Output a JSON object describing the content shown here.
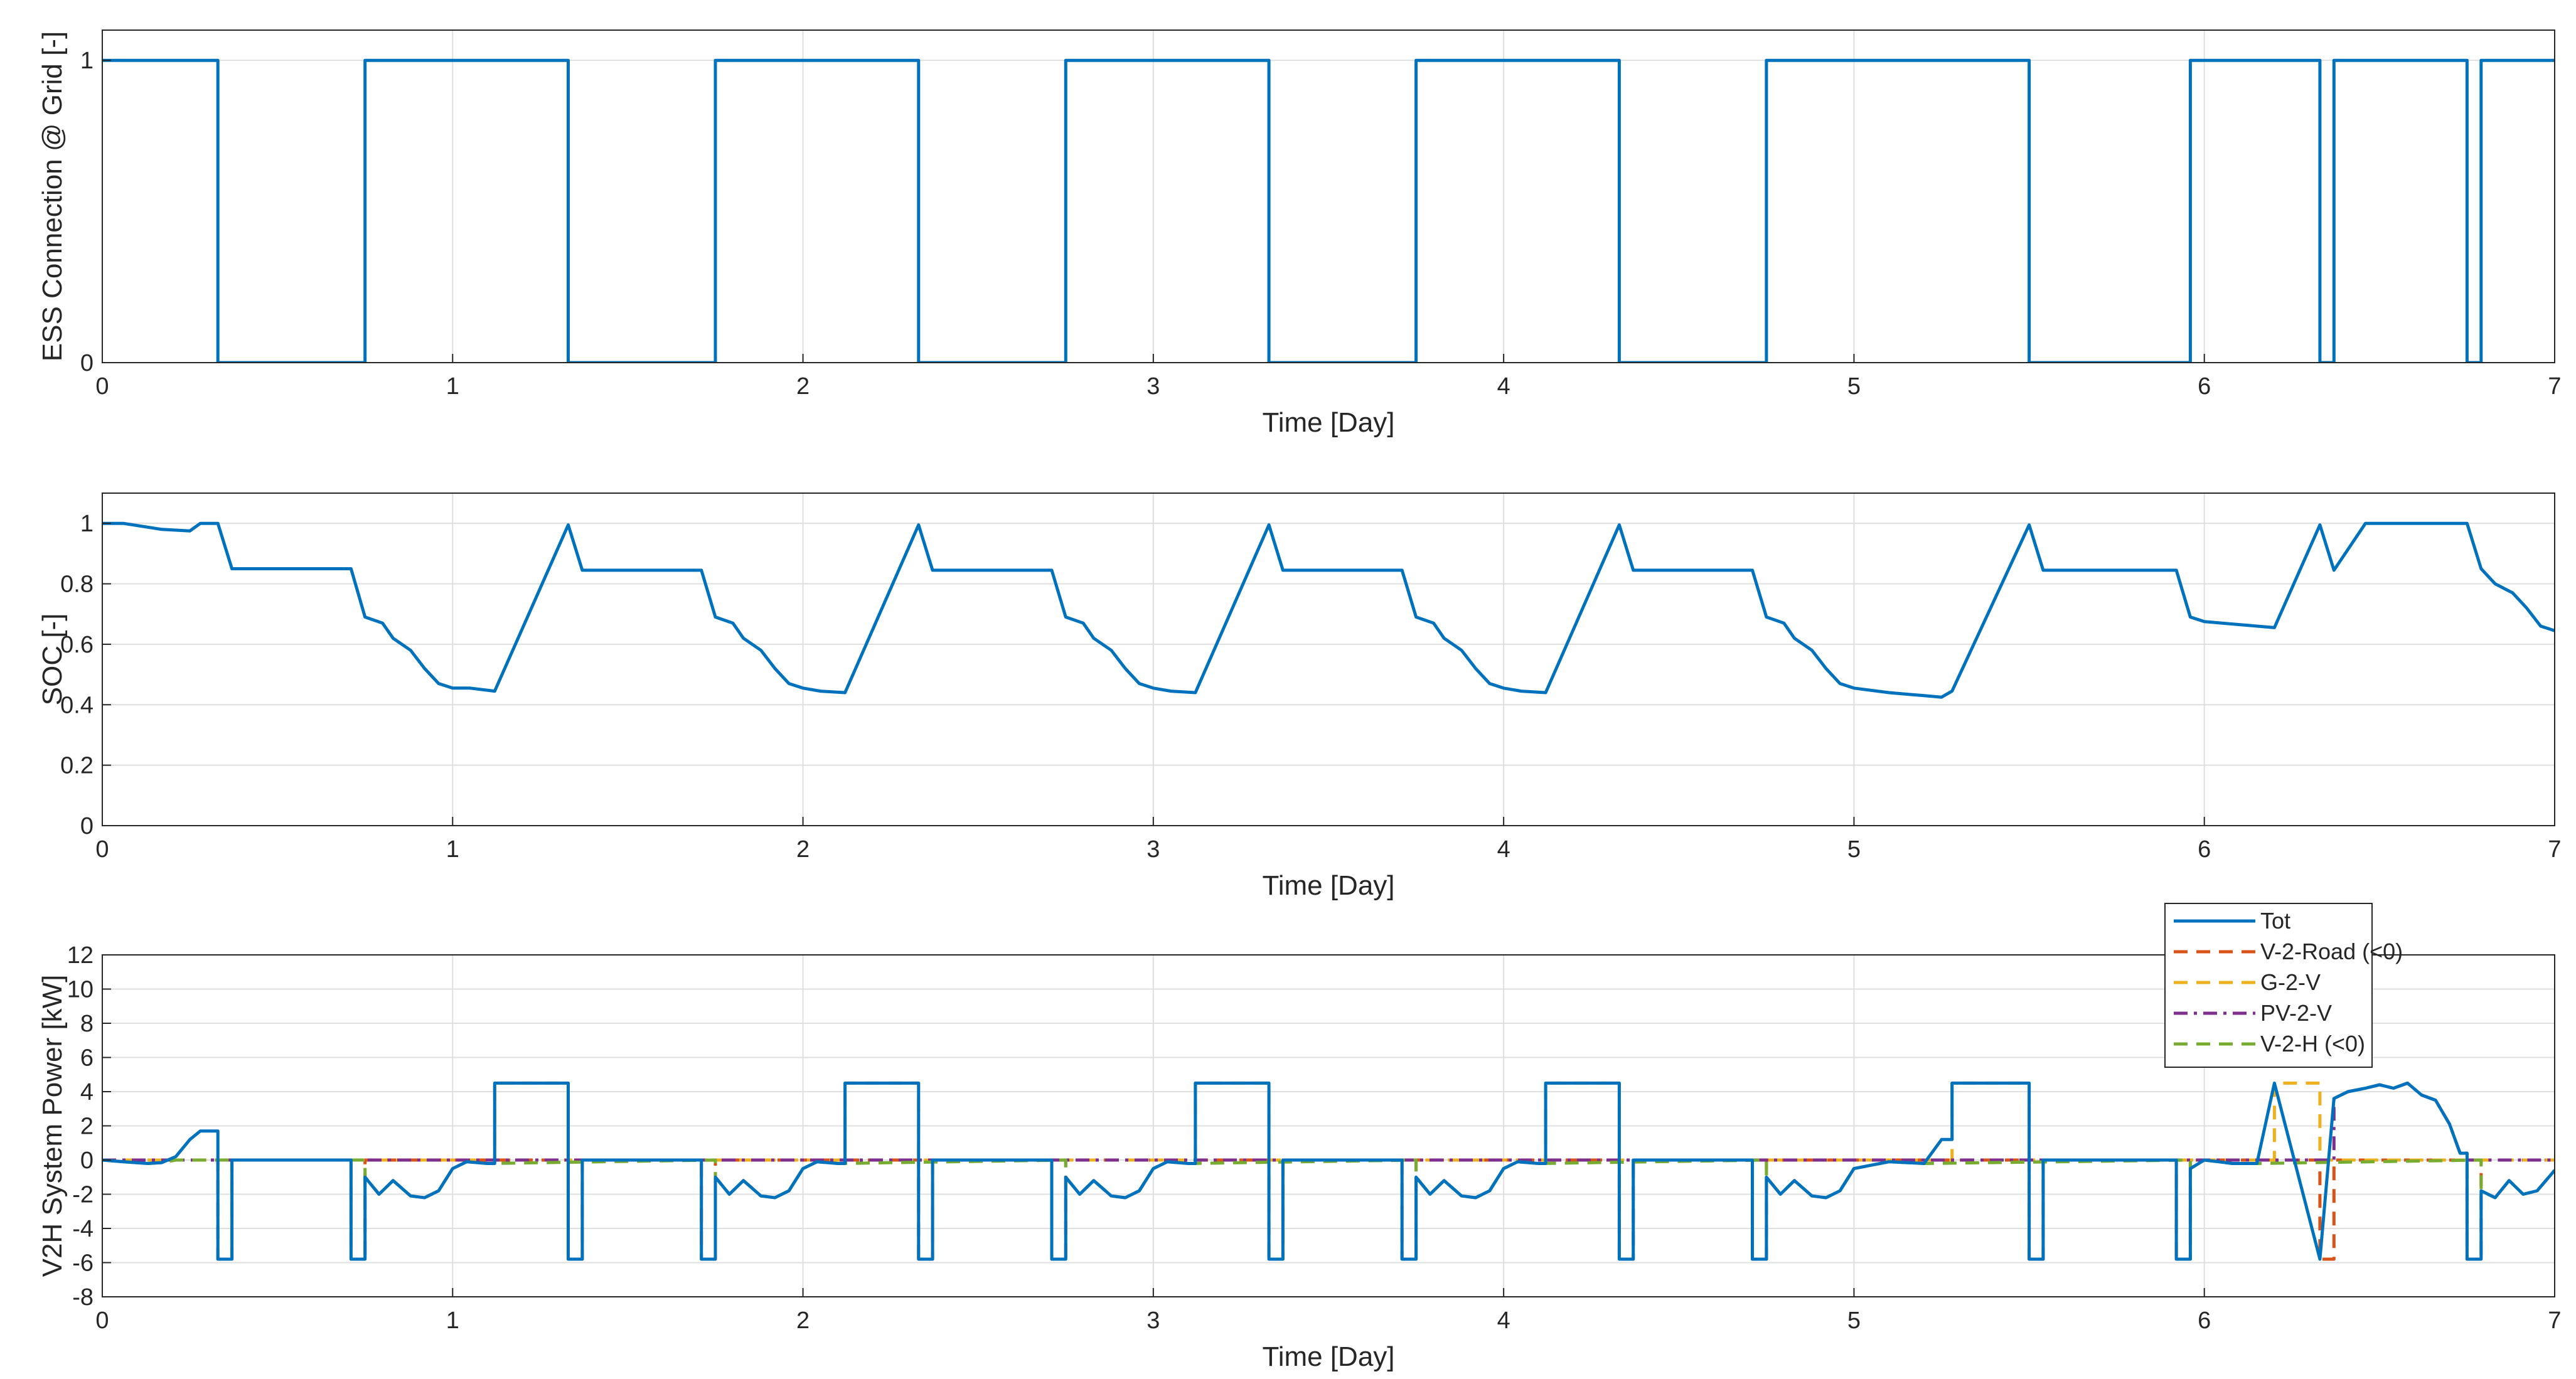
{
  "chart_data": [
    {
      "type": "line",
      "title": "",
      "xlabel": "Time [Day]",
      "ylabel": "ESS Connection @ Grid [-]",
      "xlim": [
        0,
        7
      ],
      "ylim": [
        0,
        1.1
      ],
      "xticks": [
        0,
        1,
        2,
        3,
        4,
        5,
        6,
        7
      ],
      "yticks": [
        0,
        1
      ],
      "grid": true,
      "step": true,
      "series": [
        {
          "color": "#0072BD",
          "dash": "solid",
          "x": [
            0,
            0.33,
            0.33,
            0.75,
            0.75,
            1.33,
            1.33,
            1.75,
            1.75,
            2.33,
            2.33,
            2.75,
            2.75,
            3.33,
            3.33,
            3.75,
            3.75,
            4.33,
            4.33,
            4.75,
            4.75,
            5.5,
            5.5,
            5.96,
            5.96,
            6.33,
            6.33,
            6.37,
            6.37,
            6.75,
            6.75,
            6.79,
            6.79,
            7
          ],
          "y": [
            1,
            1,
            0,
            0,
            1,
            1,
            0,
            0,
            1,
            1,
            0,
            0,
            1,
            1,
            0,
            0,
            1,
            1,
            0,
            0,
            1,
            1,
            0,
            0,
            1,
            1,
            0,
            0,
            1,
            1,
            0,
            0,
            1,
            1
          ]
        }
      ]
    },
    {
      "type": "line",
      "title": "",
      "xlabel": "Time [Day]",
      "ylabel": "SOC [-]",
      "xlim": [
        0,
        7
      ],
      "ylim": [
        0,
        1.1
      ],
      "xticks": [
        0,
        1,
        2,
        3,
        4,
        5,
        6,
        7
      ],
      "yticks": [
        0,
        0.2,
        0.4,
        0.6,
        0.8,
        1
      ],
      "grid": true,
      "series": [
        {
          "color": "#0072BD",
          "dash": "solid",
          "x": [
            0,
            0.06,
            0.17,
            0.25,
            0.28,
            0.33,
            0.37,
            0.71,
            0.75,
            0.8,
            0.83,
            0.88,
            0.92,
            0.96,
            1.0,
            1.05,
            1.12,
            1.33,
            1.37,
            1.71,
            1.75,
            1.8,
            1.83,
            1.88,
            1.92,
            1.96,
            2.0,
            2.05,
            2.12,
            2.33,
            2.37,
            2.71,
            2.75,
            2.8,
            2.83,
            2.88,
            2.92,
            2.96,
            3.0,
            3.05,
            3.12,
            3.33,
            3.37,
            3.71,
            3.75,
            3.8,
            3.83,
            3.88,
            3.92,
            3.96,
            4.0,
            4.05,
            4.12,
            4.33,
            4.37,
            4.71,
            4.75,
            4.8,
            4.83,
            4.88,
            4.92,
            4.96,
            5.0,
            5.1,
            5.2,
            5.25,
            5.28,
            5.5,
            5.54,
            5.92,
            5.96,
            6.0,
            6.2,
            6.33,
            6.37,
            6.46,
            6.75,
            6.79,
            6.83,
            6.88,
            6.92,
            6.96,
            7.0
          ],
          "y": [
            1.0,
            1.0,
            0.98,
            0.975,
            1.0,
            1.0,
            0.85,
            0.85,
            0.69,
            0.67,
            0.62,
            0.58,
            0.52,
            0.47,
            0.455,
            0.455,
            0.445,
            0.995,
            0.845,
            0.845,
            0.69,
            0.67,
            0.62,
            0.58,
            0.52,
            0.47,
            0.455,
            0.445,
            0.44,
            0.995,
            0.845,
            0.845,
            0.69,
            0.67,
            0.62,
            0.58,
            0.52,
            0.47,
            0.455,
            0.445,
            0.44,
            0.995,
            0.845,
            0.845,
            0.69,
            0.67,
            0.62,
            0.58,
            0.52,
            0.47,
            0.455,
            0.445,
            0.44,
            0.995,
            0.845,
            0.845,
            0.69,
            0.67,
            0.62,
            0.58,
            0.52,
            0.47,
            0.455,
            0.44,
            0.43,
            0.425,
            0.445,
            0.995,
            0.845,
            0.845,
            0.69,
            0.675,
            0.655,
            0.995,
            0.845,
            1.0,
            1.0,
            0.85,
            0.8,
            0.77,
            0.72,
            0.66,
            0.645
          ]
        }
      ]
    },
    {
      "type": "line",
      "title": "",
      "xlabel": "Time [Day]",
      "ylabel": "V2H System Power [kW]",
      "xlim": [
        0,
        7
      ],
      "ylim": [
        -8,
        12
      ],
      "xticks": [
        0,
        1,
        2,
        3,
        4,
        5,
        6,
        7
      ],
      "yticks": [
        -8,
        -6,
        -4,
        -2,
        0,
        2,
        4,
        6,
        8,
        10,
        12
      ],
      "grid": true,
      "step": true,
      "legend": "top-right",
      "series": [
        {
          "name": "Tot",
          "color": "#0072BD",
          "dash": "solid",
          "x": [
            0,
            0.06,
            0.13,
            0.17,
            0.21,
            0.25,
            0.28,
            0.33,
            0.33,
            0.37,
            0.37,
            0.71,
            0.71,
            0.75,
            0.75,
            0.79,
            0.83,
            0.88,
            0.92,
            0.96,
            1.0,
            1.04,
            1.1,
            1.12,
            1.12,
            1.33,
            1.33,
            1.37,
            1.37,
            1.71,
            1.71,
            1.75,
            1.75,
            1.79,
            1.83,
            1.88,
            1.92,
            1.96,
            2.0,
            2.04,
            2.1,
            2.12,
            2.12,
            2.33,
            2.33,
            2.37,
            2.37,
            2.71,
            2.71,
            2.75,
            2.75,
            2.79,
            2.83,
            2.88,
            2.92,
            2.96,
            3.0,
            3.04,
            3.1,
            3.12,
            3.12,
            3.33,
            3.33,
            3.37,
            3.37,
            3.71,
            3.71,
            3.75,
            3.75,
            3.79,
            3.83,
            3.88,
            3.92,
            3.96,
            4.0,
            4.04,
            4.1,
            4.12,
            4.12,
            4.33,
            4.33,
            4.37,
            4.37,
            4.71,
            4.71,
            4.75,
            4.75,
            4.79,
            4.83,
            4.88,
            4.92,
            4.96,
            5.0,
            5.1,
            5.2,
            5.25,
            5.28,
            5.28,
            5.5,
            5.5,
            5.54,
            5.54,
            5.92,
            5.92,
            5.96,
            5.96,
            6.0,
            6.04,
            6.08,
            6.15,
            6.2,
            6.2,
            6.33,
            6.33,
            6.37,
            6.37,
            6.41,
            6.46,
            6.5,
            6.54,
            6.58,
            6.62,
            6.66,
            6.7,
            6.73,
            6.75,
            6.75,
            6.79,
            6.79,
            6.83,
            6.87,
            6.91,
            6.95,
            7.0
          ],
          "y": [
            0,
            -0.1,
            -0.2,
            -0.15,
            0.2,
            1.2,
            1.7,
            1.7,
            -5.8,
            -5.8,
            0,
            0,
            -5.8,
            -5.8,
            -1.0,
            -2.0,
            -1.2,
            -2.1,
            -2.2,
            -1.8,
            -0.5,
            -0.1,
            -0.2,
            -0.2,
            4.5,
            4.5,
            -5.8,
            -5.8,
            0,
            0,
            -5.8,
            -5.8,
            -1.0,
            -2.0,
            -1.2,
            -2.1,
            -2.2,
            -1.8,
            -0.5,
            -0.1,
            -0.2,
            -0.2,
            4.5,
            4.5,
            -5.8,
            -5.8,
            0,
            0,
            -5.8,
            -5.8,
            -1.0,
            -2.0,
            -1.2,
            -2.1,
            -2.2,
            -1.8,
            -0.5,
            -0.1,
            -0.2,
            -0.2,
            4.5,
            4.5,
            -5.8,
            -5.8,
            0,
            0,
            -5.8,
            -5.8,
            -1.0,
            -2.0,
            -1.2,
            -2.1,
            -2.2,
            -1.8,
            -0.5,
            -0.1,
            -0.2,
            -0.2,
            4.5,
            4.5,
            -5.8,
            -5.8,
            0,
            0,
            -5.8,
            -5.8,
            -1.0,
            -2.0,
            -1.2,
            -2.1,
            -2.2,
            -1.8,
            -0.5,
            -0.1,
            -0.2,
            1.2,
            1.2,
            4.5,
            4.5,
            -5.8,
            -5.8,
            0,
            0,
            -5.8,
            -5.8,
            -0.5,
            0,
            -0.1,
            -0.2,
            -0.2,
            4.5,
            4.5,
            -5.8,
            -5.8,
            3.6,
            3.6,
            4.0,
            4.2,
            4.4,
            4.2,
            4.5,
            3.8,
            3.5,
            2.1,
            0.4,
            0.4,
            -5.8,
            -5.8,
            -1.8,
            -2.2,
            -1.2,
            -2.0,
            -1.8,
            -0.6
          ]
        },
        {
          "name": "V-2-Road (<0)",
          "color": "#D95319",
          "dash": "dashed",
          "x": [
            0,
            0.33,
            0.33,
            0.37,
            0.37,
            0.71,
            0.71,
            0.75,
            0.75,
            1.33,
            1.33,
            1.37,
            1.37,
            1.71,
            1.71,
            1.75,
            1.75,
            2.33,
            2.33,
            2.37,
            2.37,
            2.71,
            2.71,
            2.75,
            2.75,
            3.33,
            3.33,
            3.37,
            3.37,
            3.71,
            3.71,
            3.75,
            3.75,
            4.33,
            4.33,
            4.37,
            4.37,
            4.71,
            4.71,
            4.75,
            4.75,
            5.5,
            5.5,
            5.54,
            5.54,
            5.92,
            5.92,
            5.96,
            5.96,
            6.33,
            6.33,
            6.37,
            6.37,
            6.75,
            6.75,
            6.79,
            6.79,
            7
          ],
          "y": [
            0,
            0,
            -5.8,
            -5.8,
            0,
            0,
            -5.8,
            -5.8,
            0,
            0,
            -5.8,
            -5.8,
            0,
            0,
            -5.8,
            -5.8,
            0,
            0,
            -5.8,
            -5.8,
            0,
            0,
            -5.8,
            -5.8,
            0,
            0,
            -5.8,
            -5.8,
            0,
            0,
            -5.8,
            -5.8,
            0,
            0,
            -5.8,
            -5.8,
            0,
            0,
            -5.8,
            -5.8,
            0,
            0,
            -5.8,
            -5.8,
            0,
            0,
            -5.8,
            -5.8,
            0,
            0,
            -5.8,
            -5.8,
            0,
            0,
            -5.8,
            -5.8,
            0,
            0
          ]
        },
        {
          "name": "G-2-V",
          "color": "#EDB120",
          "dash": "dashed",
          "x": [
            0,
            1.12,
            1.12,
            1.33,
            1.33,
            2.12,
            2.12,
            2.33,
            2.33,
            3.12,
            3.12,
            3.33,
            3.33,
            4.12,
            4.12,
            4.33,
            4.33,
            5.28,
            5.28,
            5.5,
            5.5,
            6.2,
            6.2,
            6.33,
            6.33,
            7
          ],
          "y": [
            0,
            0,
            4.5,
            4.5,
            0,
            0,
            4.5,
            4.5,
            0,
            0,
            4.5,
            4.5,
            0,
            0,
            4.5,
            4.5,
            0,
            0,
            4.5,
            4.5,
            0,
            0,
            4.5,
            4.5,
            0,
            0
          ]
        },
        {
          "name": "PV-2-V",
          "color": "#7E2F8E",
          "dash": "dashdot",
          "x": [
            0,
            6.37,
            6.37,
            6.41,
            6.46,
            6.5,
            6.54,
            6.58,
            6.62,
            6.66,
            6.7,
            6.73,
            6.75,
            6.75,
            7
          ],
          "y": [
            0,
            0,
            3.6,
            4.0,
            4.2,
            4.4,
            4.2,
            4.5,
            3.8,
            3.5,
            2.1,
            0.4,
            0.4,
            0,
            0
          ]
        },
        {
          "name": "V-2-H (<0)",
          "color": "#77AC30",
          "dash": "dashed",
          "x": [
            0,
            0.06,
            0.13,
            0.17,
            0.21,
            0.75,
            0.75,
            0.79,
            0.83,
            0.88,
            0.92,
            0.96,
            1.0,
            1.04,
            1.1,
            1.75,
            1.75,
            1.79,
            1.83,
            1.88,
            1.92,
            1.96,
            2.0,
            2.04,
            2.1,
            2.75,
            2.75,
            2.79,
            2.83,
            2.88,
            2.92,
            2.96,
            3.0,
            3.04,
            3.1,
            3.75,
            3.75,
            3.79,
            3.83,
            3.88,
            3.92,
            3.96,
            4.0,
            4.04,
            4.1,
            4.75,
            4.75,
            4.79,
            4.83,
            4.88,
            4.92,
            4.96,
            5.0,
            5.1,
            5.2,
            5.96,
            5.96,
            6.0,
            6.04,
            6.08,
            6.15,
            6.79,
            6.79,
            6.83,
            6.87,
            6.91,
            6.95,
            7.0
          ],
          "y": [
            0,
            -0.1,
            -0.2,
            -0.15,
            0,
            0,
            -1.0,
            -2.0,
            -1.2,
            -2.1,
            -2.2,
            -1.8,
            -0.5,
            -0.1,
            -0.2,
            0,
            -1.0,
            -2.0,
            -1.2,
            -2.1,
            -2.2,
            -1.8,
            -0.5,
            -0.1,
            -0.2,
            0,
            -1.0,
            -2.0,
            -1.2,
            -2.1,
            -2.2,
            -1.8,
            -0.5,
            -0.1,
            -0.2,
            0,
            -1.0,
            -2.0,
            -1.2,
            -2.1,
            -2.2,
            -1.8,
            -0.5,
            -0.1,
            -0.2,
            0,
            -1.0,
            -2.0,
            -1.2,
            -2.1,
            -2.2,
            -1.8,
            -0.5,
            -0.1,
            -0.2,
            0,
            -0.5,
            0,
            -0.1,
            -0.2,
            -0.2,
            0,
            -1.8,
            -2.2,
            -1.2,
            -2.0,
            -1.8,
            -0.6
          ]
        }
      ]
    }
  ]
}
